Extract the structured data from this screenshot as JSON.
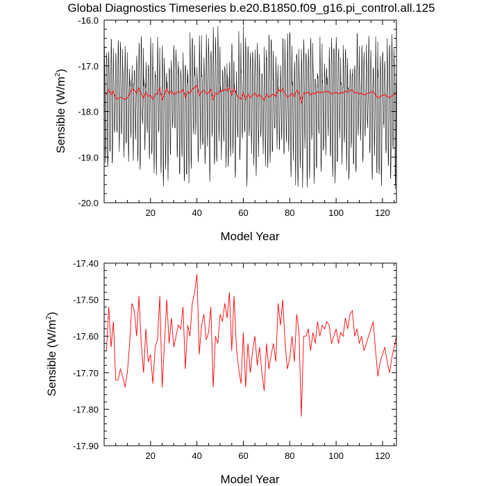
{
  "figure_title": "Global Diagnostics Timeseries b.e20.B1850.f09_g16.pi_control.all.125",
  "chart_data": [
    {
      "type": "line",
      "panel": "top",
      "title": "Global Diagnostics Timeseries b.e20.B1850.f09_g16.pi_control.all.125",
      "xlabel": "Model Year",
      "ylabel": "Sensible (W/m2)",
      "ylabel_base": "Sensible (W/m",
      "ylabel_sup": "2",
      "ylabel_tail": ")",
      "xlim": [
        0,
        126
      ],
      "ylim": [
        -20.0,
        -16.0
      ],
      "x_ticks": [
        20,
        40,
        60,
        80,
        100,
        120
      ],
      "x_tick_labels": [
        "20",
        "40",
        "60",
        "80",
        "100",
        "120"
      ],
      "y_ticks": [
        -16.0,
        -17.0,
        -18.0,
        -19.0,
        -20.0
      ],
      "y_tick_labels": [
        "-16.0",
        "-17.0",
        "-18.0",
        "-19.0",
        "-20.0"
      ],
      "series": [
        {
          "color": "#000000",
          "description_of_shape": "monthly values oscillating seasonally",
          "seasonal_max_range": [
            -17.4,
            -16.2
          ],
          "seasonal_min_range": [
            -19.6,
            -18.3
          ]
        },
        {
          "color": "#ff0000",
          "description_of_shape": "annual mean (same as lower panel)"
        }
      ],
      "grid": false
    },
    {
      "type": "line",
      "panel": "bottom",
      "xlabel": "Model Year",
      "ylabel": "Sensible (W/m2)",
      "ylabel_base": "Sensible (W/m",
      "ylabel_sup": "2",
      "ylabel_tail": ")",
      "xlim": [
        0,
        126
      ],
      "ylim": [
        -17.9,
        -17.4
      ],
      "x_ticks": [
        20,
        40,
        60,
        80,
        100,
        120
      ],
      "x_tick_labels": [
        "20",
        "40",
        "60",
        "80",
        "100",
        "120"
      ],
      "y_ticks": [
        -17.4,
        -17.5,
        -17.6,
        -17.7,
        -17.8,
        -17.9
      ],
      "y_tick_labels": [
        "-17.40",
        "-17.50",
        "-17.60",
        "-17.70",
        "-17.80",
        "-17.90"
      ],
      "series": [
        {
          "color": "#ff0000",
          "x": [
            1,
            2,
            3,
            4,
            5,
            6,
            7,
            8,
            9,
            10,
            11,
            12,
            13,
            14,
            15,
            16,
            17,
            18,
            19,
            20,
            21,
            22,
            23,
            24,
            25,
            26,
            27,
            28,
            29,
            30,
            31,
            32,
            33,
            34,
            35,
            36,
            37,
            38,
            39,
            40,
            41,
            42,
            43,
            44,
            45,
            46,
            47,
            48,
            49,
            50,
            51,
            52,
            53,
            54,
            55,
            56,
            57,
            58,
            59,
            60,
            61,
            62,
            63,
            64,
            65,
            66,
            67,
            68,
            69,
            70,
            71,
            72,
            73,
            74,
            75,
            76,
            77,
            78,
            79,
            80,
            81,
            82,
            83,
            84,
            85,
            86,
            87,
            88,
            89,
            90,
            91,
            92,
            93,
            94,
            95,
            96,
            97,
            98,
            99,
            100,
            101,
            102,
            103,
            104,
            105,
            106,
            107,
            108,
            109,
            110,
            111,
            112,
            113,
            114,
            115,
            116,
            117,
            118,
            119,
            120,
            121,
            122,
            123,
            124,
            125,
            126
          ],
          "y": [
            -17.64,
            -17.52,
            -17.63,
            -17.56,
            -17.72,
            -17.72,
            -17.69,
            -17.71,
            -17.74,
            -17.7,
            -17.62,
            -17.51,
            -17.53,
            -17.6,
            -17.49,
            -17.62,
            -17.7,
            -17.58,
            -17.67,
            -17.65,
            -17.73,
            -17.63,
            -17.61,
            -17.49,
            -17.74,
            -17.62,
            -17.5,
            -17.62,
            -17.55,
            -17.63,
            -17.6,
            -17.57,
            -17.58,
            -17.52,
            -17.69,
            -17.57,
            -17.6,
            -17.51,
            -17.48,
            -17.43,
            -17.65,
            -17.57,
            -17.54,
            -17.61,
            -17.59,
            -17.52,
            -17.74,
            -17.6,
            -17.62,
            -17.54,
            -17.56,
            -17.51,
            -17.55,
            -17.48,
            -17.64,
            -17.49,
            -17.63,
            -17.69,
            -17.73,
            -17.59,
            -17.74,
            -17.62,
            -17.7,
            -17.64,
            -17.6,
            -17.68,
            -17.63,
            -17.7,
            -17.75,
            -17.62,
            -17.69,
            -17.65,
            -17.62,
            -17.67,
            -17.51,
            -17.57,
            -17.5,
            -17.62,
            -17.69,
            -17.66,
            -17.6,
            -17.67,
            -17.54,
            -17.59,
            -17.82,
            -17.6,
            -17.6,
            -17.58,
            -17.64,
            -17.59,
            -17.62,
            -17.56,
            -17.6,
            -17.57,
            -17.58,
            -17.56,
            -17.57,
            -17.62,
            -17.6,
            -17.58,
            -17.62,
            -17.59,
            -17.6,
            -17.55,
            -17.58,
            -17.54,
            -17.53,
            -17.6,
            -17.58,
            -17.62,
            -17.6,
            -17.64,
            -17.62,
            -17.6,
            -17.58,
            -17.56,
            -17.64,
            -17.71,
            -17.67,
            -17.65,
            -17.63,
            -17.67,
            -17.7,
            -17.66,
            -17.63,
            -17.6
          ]
        }
      ],
      "grid": false
    }
  ]
}
